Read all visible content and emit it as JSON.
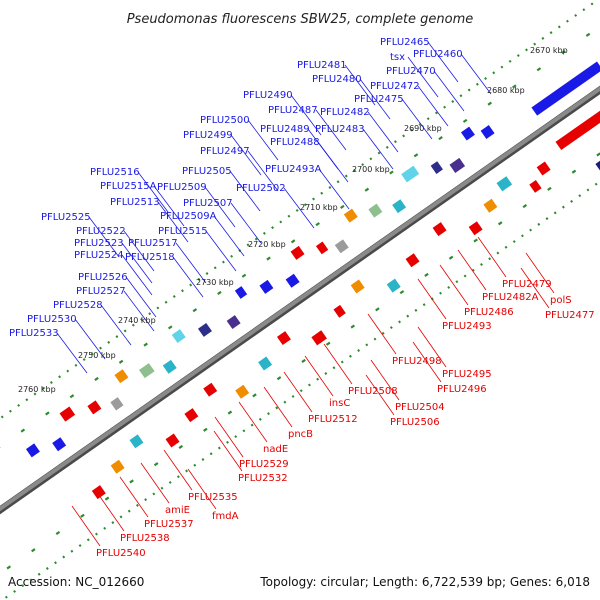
{
  "title": "Pseudomonas fluorescens SBW25, complete genome",
  "footer": {
    "accession": "Accession: NC_012660",
    "summary": "Topology: circular; Length: 6,722,539 bp; Genes: 6,018"
  },
  "colors": {
    "forward": "#1a1ae6",
    "reverse": "#e60000",
    "backbone": "#8a8a8a",
    "tick": "#2e8b2e"
  },
  "kbp_marks": [
    "2670 kbp",
    "2680 kbp",
    "2690 kbp",
    "2700 kbp",
    "2710 kbp",
    "2720 kbp",
    "2730 kbp",
    "2740 kbp",
    "2750 kbp",
    "2760 kbp"
  ],
  "forward_labels": [
    "PFLU2465",
    "tsx",
    "PFLU2460",
    "PFLU2481",
    "PFLU2470",
    "PFLU2480",
    "PFLU2472",
    "PFLU2475",
    "PFLU2490",
    "PFLU2487",
    "PFLU2482",
    "PFLU2500",
    "PFLU2489",
    "PFLU2483",
    "PFLU2499",
    "PFLU2488",
    "PFLU2497",
    "PFLU2493A",
    "PFLU2516",
    "PFLU2505",
    "PFLU2515A",
    "PFLU2509",
    "PFLU2502",
    "PFLU2513",
    "PFLU2507",
    "PFLU2509A",
    "PFLU2525",
    "PFLU2522",
    "PFLU2515",
    "PFLU2523",
    "PFLU2517",
    "PFLU2524",
    "PFLU2518",
    "PFLU2526",
    "PFLU2527",
    "PFLU2528",
    "PFLU2530",
    "PFLU2533"
  ],
  "reverse_labels": [
    "PFLU2479",
    "PFLU2482A",
    "polS",
    "PFLU2486",
    "PFLU2477",
    "PFLU2493",
    "PFLU2498",
    "PFLU2495",
    "PFLU2496",
    "PFLU2508",
    "PFLU2504",
    "insC",
    "PFLU2506",
    "PFLU2512",
    "pncB",
    "nadE",
    "PFLU2529",
    "PFLU2532",
    "PFLU2535",
    "amiE",
    "fmdA",
    "PFLU2537",
    "PFLU2538",
    "PFLU2540"
  ]
}
